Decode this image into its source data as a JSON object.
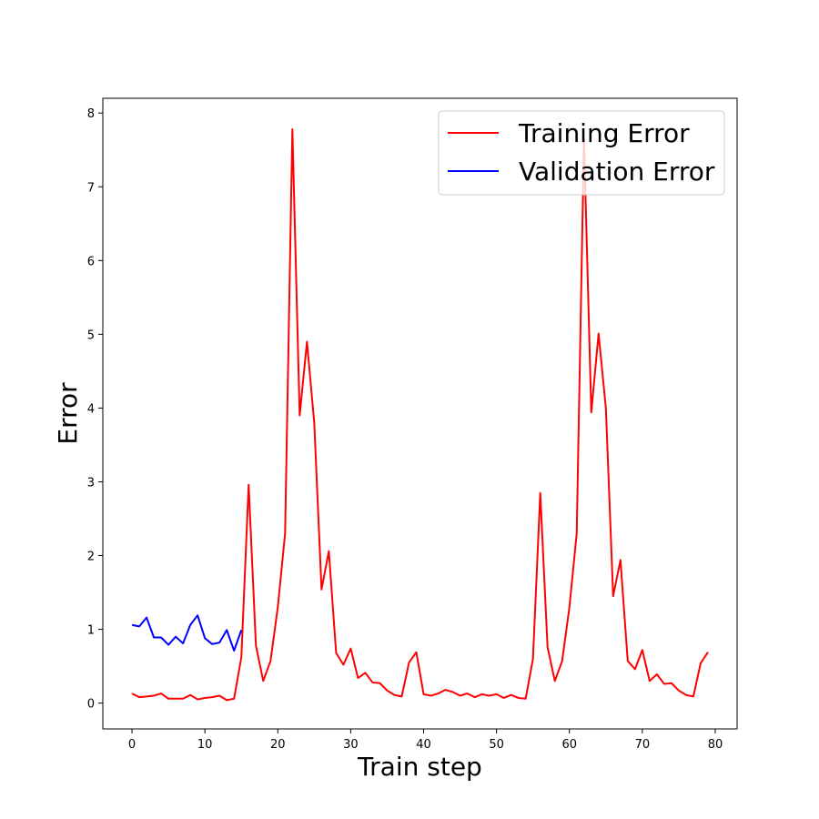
{
  "chart_data": {
    "type": "line",
    "xlabel": "Train step",
    "ylabel": "Error",
    "xlim": [
      -4,
      83
    ],
    "ylim": [
      -0.35,
      8.2
    ],
    "xticks": [
      0,
      10,
      20,
      30,
      40,
      50,
      60,
      70,
      80
    ],
    "yticks": [
      0,
      1,
      2,
      3,
      4,
      5,
      6,
      7,
      8
    ],
    "grid": false,
    "legend": "top-right",
    "series": [
      {
        "name": "Training Error",
        "color": "#ff0000",
        "x": [
          0,
          1,
          2,
          3,
          4,
          5,
          6,
          7,
          8,
          9,
          10,
          11,
          12,
          13,
          14,
          15,
          16,
          17,
          18,
          19,
          20,
          21,
          22,
          23,
          24,
          25,
          26,
          27,
          28,
          29,
          30,
          31,
          32,
          33,
          34,
          35,
          36,
          37,
          38,
          39,
          40,
          41,
          42,
          43,
          44,
          45,
          46,
          47,
          48,
          49,
          50,
          51,
          52,
          53,
          54,
          55,
          56,
          57,
          58,
          59,
          60,
          61,
          62,
          63,
          64,
          65,
          66,
          67,
          68,
          69,
          70,
          71,
          72,
          73,
          74,
          75,
          76,
          77,
          78,
          79
        ],
        "values": [
          0.13,
          0.08,
          0.09,
          0.1,
          0.13,
          0.06,
          0.06,
          0.06,
          0.11,
          0.05,
          0.07,
          0.08,
          0.1,
          0.04,
          0.06,
          0.62,
          2.96,
          0.78,
          0.3,
          0.57,
          1.3,
          2.3,
          7.78,
          3.9,
          4.9,
          3.8,
          1.54,
          2.06,
          0.68,
          0.52,
          0.74,
          0.34,
          0.41,
          0.28,
          0.27,
          0.17,
          0.11,
          0.09,
          0.55,
          0.69,
          0.12,
          0.1,
          0.13,
          0.18,
          0.15,
          0.1,
          0.13,
          0.08,
          0.12,
          0.1,
          0.12,
          0.07,
          0.11,
          0.07,
          0.06,
          0.6,
          2.85,
          0.76,
          0.3,
          0.57,
          1.3,
          2.3,
          7.65,
          3.94,
          5.01,
          4.0,
          1.45,
          1.94,
          0.57,
          0.46,
          0.72,
          0.3,
          0.39,
          0.26,
          0.27,
          0.17,
          0.11,
          0.09,
          0.54,
          0.69
        ]
      },
      {
        "name": "Validation Error",
        "color": "#0000ff",
        "x": [
          0,
          1,
          2,
          3,
          4,
          5,
          6,
          7,
          8,
          9,
          10,
          11,
          12,
          13,
          14,
          15
        ],
        "values": [
          1.06,
          1.04,
          1.16,
          0.89,
          0.89,
          0.79,
          0.9,
          0.81,
          1.06,
          1.19,
          0.88,
          0.8,
          0.82,
          0.99,
          0.71,
          0.99
        ]
      }
    ]
  }
}
